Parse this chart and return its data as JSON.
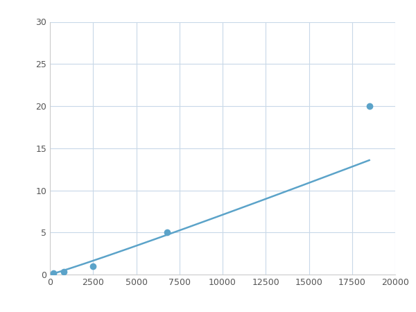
{
  "x": [
    200,
    800,
    2500,
    6800,
    18500
  ],
  "y": [
    0.2,
    0.3,
    1.0,
    5.0,
    20.0
  ],
  "line_color": "#5ba3c9",
  "marker_color": "#5ba3c9",
  "marker_size": 7,
  "line_width": 1.8,
  "xlim": [
    0,
    20000
  ],
  "ylim": [
    0,
    30
  ],
  "xticks": [
    0,
    2500,
    5000,
    7500,
    10000,
    12500,
    15000,
    17500,
    20000
  ],
  "yticks": [
    0,
    5,
    10,
    15,
    20,
    25,
    30
  ],
  "grid_color": "#c8d8e8",
  "background_color": "#ffffff",
  "figsize": [
    6.0,
    4.5
  ],
  "dpi": 100
}
